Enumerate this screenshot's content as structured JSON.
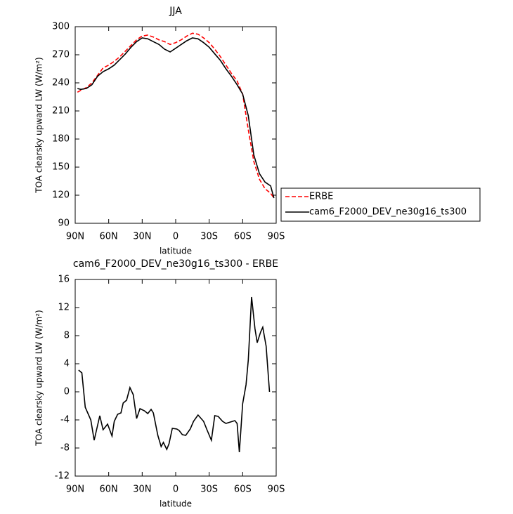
{
  "chart_data": [
    {
      "type": "line",
      "title": "JJA",
      "xlabel": "latitude",
      "ylabel": "TOA clearsky upward LW (W/m²)",
      "xlim": [
        90,
        -90
      ],
      "xticks": [
        {
          "value": 90,
          "label": "90N"
        },
        {
          "value": 60,
          "label": "60N"
        },
        {
          "value": 30,
          "label": "30N"
        },
        0,
        {
          "value": -30,
          "label": "30S"
        },
        {
          "value": -60,
          "label": "60S"
        },
        {
          "value": -90,
          "label": "90S"
        }
      ],
      "ylim": [
        90,
        300
      ],
      "yticks": [
        90,
        120,
        150,
        180,
        210,
        240,
        270,
        300
      ],
      "legend": true,
      "x": [
        88,
        85,
        80,
        75,
        70,
        65,
        60,
        55,
        50,
        45,
        40,
        35,
        30,
        25,
        20,
        15,
        10,
        5,
        0,
        -5,
        -10,
        -15,
        -20,
        -25,
        -30,
        -35,
        -40,
        -45,
        -50,
        -55,
        -60,
        -65,
        -70,
        -75,
        -80,
        -85,
        -88
      ],
      "series": [
        {
          "name": "ERBE",
          "color": "#ff0000",
          "dashed": true,
          "values": [
            230,
            232,
            235,
            240,
            248,
            256,
            259,
            263,
            268,
            274,
            280,
            286,
            290,
            291,
            289,
            286,
            284,
            281,
            283,
            286,
            290,
            293,
            292,
            288,
            283,
            276,
            268,
            259,
            250,
            242,
            228,
            190,
            156,
            137,
            127,
            122,
            117
          ]
        },
        {
          "name": "cam6_F2000_DEV_ne30g16_ts300",
          "color": "#000000",
          "dashed": false,
          "values": [
            234,
            233,
            234,
            238,
            247,
            252,
            255,
            259,
            265,
            271,
            278,
            284,
            288,
            287,
            284,
            281,
            276,
            273,
            277,
            281,
            285,
            288,
            287,
            283,
            278,
            271,
            264,
            255,
            247,
            238,
            228,
            205,
            163,
            143,
            134,
            130,
            117
          ]
        }
      ]
    },
    {
      "type": "line",
      "title": "cam6_F2000_DEV_ne30g16_ts300 - ERBE",
      "xlabel": "latitude",
      "ylabel": "TOA clearsky upward LW (W/m²)",
      "xlim": [
        90,
        -90
      ],
      "xticks": [
        {
          "value": 90,
          "label": "90N"
        },
        {
          "value": 60,
          "label": "60N"
        },
        {
          "value": 30,
          "label": "30N"
        },
        0,
        {
          "value": -30,
          "label": "30S"
        },
        {
          "value": -60,
          "label": "60S"
        },
        {
          "value": -90,
          "label": "90S"
        }
      ],
      "ylim": [
        -12,
        16
      ],
      "yticks": [
        -12,
        -8,
        -4,
        0,
        4,
        8,
        12,
        16
      ],
      "legend": false,
      "x": [
        87,
        84,
        81,
        76,
        73,
        70,
        68,
        65,
        61,
        57,
        55,
        52,
        49,
        47,
        44,
        41,
        38,
        35,
        32,
        28,
        25,
        22,
        20,
        16,
        13,
        11,
        8,
        6,
        3,
        -1,
        -3,
        -6,
        -9,
        -13,
        -16,
        -20,
        -25,
        -28,
        -32,
        -35,
        -38,
        -42,
        -45,
        -49,
        -53,
        -55,
        -57,
        -60,
        -63,
        -65,
        -68,
        -71,
        -73,
        -76,
        -78,
        -81,
        -84
      ],
      "series": [
        {
          "color": "#000000",
          "dashed": false,
          "values": [
            3.1,
            2.7,
            -2.2,
            -4,
            -6.9,
            -4.8,
            -3.4,
            -5.4,
            -4.6,
            -6.3,
            -4.2,
            -3.2,
            -3.0,
            -1.6,
            -1.2,
            0.6,
            -0.4,
            -3.8,
            -2.4,
            -2.7,
            -3.1,
            -2.5,
            -3.0,
            -6.2,
            -7.8,
            -7.2,
            -8.2,
            -7.4,
            -5.2,
            -5.3,
            -5.5,
            -6.1,
            -6.2,
            -5.3,
            -4.2,
            -3.3,
            -4.2,
            -5.4,
            -6.9,
            -3.4,
            -3.5,
            -4.2,
            -4.5,
            -4.3,
            -4.1,
            -4.5,
            -8.6,
            -1.7,
            1.0,
            4.5,
            13.5,
            9.0,
            7.0,
            8.5,
            9.2,
            6.5,
            0
          ]
        }
      ]
    }
  ]
}
